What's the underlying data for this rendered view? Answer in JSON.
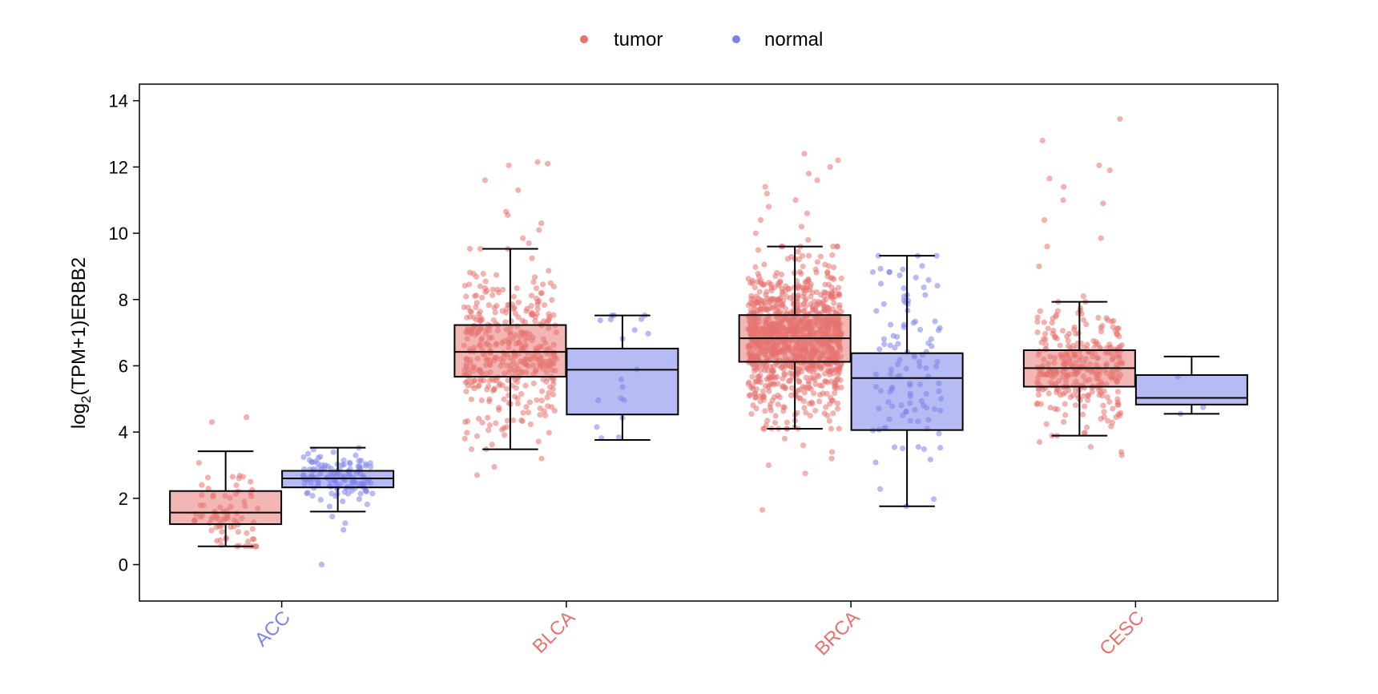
{
  "colors": {
    "tumor_point": "#e5726f",
    "tumor_box": "#f2b6b5",
    "normal_point": "#7b83ea",
    "normal_box": "#b6bbf3",
    "cat_tumor_label": "#e5726f",
    "cat_normal_label": "#7b83ea"
  },
  "chart_data": {
    "type": "box",
    "ylabel": {
      "prefix": "log",
      "subscript": "2",
      "suffix": "(TPM+1)ERBB2"
    },
    "ylim": [
      -1.1,
      14.5
    ],
    "yticks": [
      "0",
      "2",
      "4",
      "6",
      "8",
      "10",
      "12",
      "14"
    ],
    "grid": false,
    "legend": {
      "position": "top-center",
      "entries": [
        "tumor",
        "normal"
      ]
    },
    "categories": [
      {
        "name": "ACC",
        "label_color_series": "normal",
        "tumor": {
          "whisker_low": 0.55,
          "q1": 1.22,
          "median": 1.57,
          "q3": 2.22,
          "whisker_high": 3.42,
          "n_points": 80,
          "outliers": [
            4.3,
            4.45
          ]
        },
        "normal": {
          "whisker_low": 1.6,
          "q1": 2.33,
          "median": 2.6,
          "q3": 2.83,
          "whisker_high": 3.53,
          "n_points": 130,
          "outliers": [
            0.0,
            1.05,
            1.25,
            1.45
          ]
        }
      },
      {
        "name": "BLCA",
        "label_color_series": "tumor",
        "tumor": {
          "whisker_low": 3.48,
          "q1": 5.67,
          "median": 6.42,
          "q3": 7.23,
          "whisker_high": 9.53,
          "n_points": 400,
          "outliers": [
            2.7,
            2.95,
            3.2,
            9.7,
            9.85,
            10.1,
            10.3,
            10.55,
            10.65,
            11.3,
            11.6,
            12.05,
            12.1,
            12.15
          ]
        },
        "normal": {
          "whisker_low": 3.76,
          "q1": 4.53,
          "median": 5.88,
          "q3": 6.52,
          "whisker_high": 7.52,
          "n_points": 19,
          "outliers": []
        }
      },
      {
        "name": "BRCA",
        "label_color_series": "tumor",
        "tumor": {
          "whisker_low": 4.1,
          "q1": 6.12,
          "median": 6.83,
          "q3": 7.53,
          "whisker_high": 9.6,
          "n_points": 1100,
          "outliers": [
            1.65,
            2.75,
            3.0,
            3.2,
            3.4,
            3.6,
            3.8,
            9.8,
            10.0,
            10.2,
            10.4,
            10.6,
            10.8,
            11.0,
            11.2,
            11.4,
            11.6,
            11.8,
            12.0,
            12.2,
            12.4
          ]
        },
        "normal": {
          "whisker_low": 1.76,
          "q1": 4.06,
          "median": 5.63,
          "q3": 6.38,
          "whisker_high": 9.32,
          "n_points": 113,
          "outliers": []
        }
      },
      {
        "name": "CESC",
        "label_color_series": "tumor",
        "tumor": {
          "whisker_low": 3.89,
          "q1": 5.37,
          "median": 5.93,
          "q3": 6.47,
          "whisker_high": 7.93,
          "n_points": 306,
          "outliers": [
            3.3,
            3.4,
            3.55,
            3.7,
            8.1,
            9.0,
            9.6,
            9.85,
            10.4,
            10.9,
            11.0,
            11.4,
            11.65,
            11.9,
            12.05,
            12.8,
            13.45
          ]
        },
        "normal": {
          "whisker_low": 4.55,
          "q1": 4.83,
          "median": 5.03,
          "q3": 5.72,
          "whisker_high": 6.28,
          "n_points": 3,
          "outliers": []
        }
      }
    ]
  }
}
